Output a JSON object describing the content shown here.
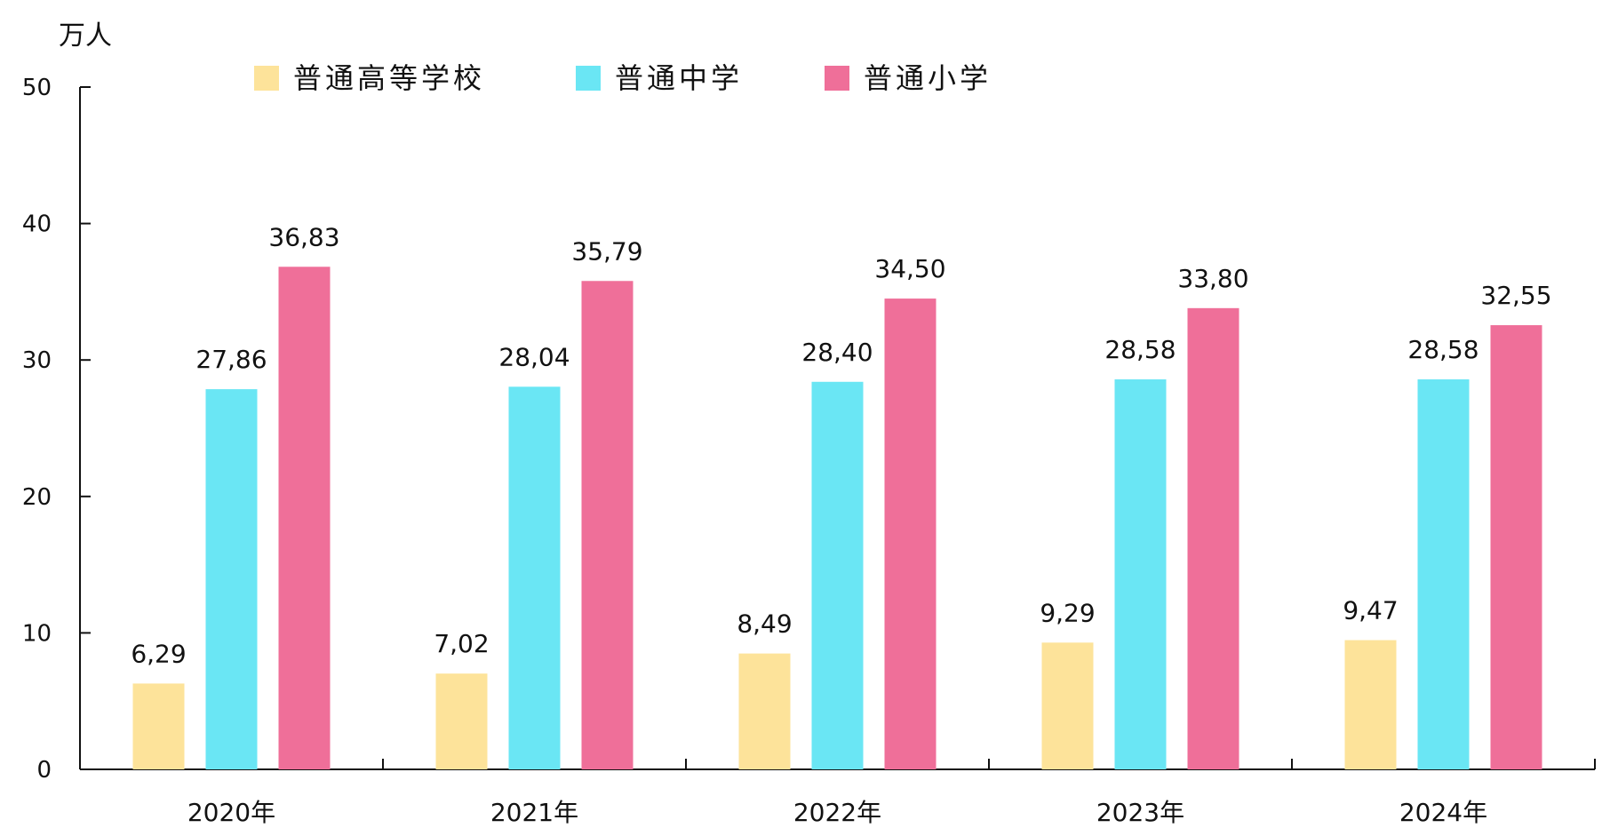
{
  "chart_data": {
    "type": "bar",
    "unit_label": "万人",
    "categories": [
      "2020年",
      "2021年",
      "2022年",
      "2023年",
      "2024年"
    ],
    "series": [
      {
        "name": "普通高等学校",
        "color": "#fde39a",
        "values": [
          6.29,
          7.02,
          8.49,
          9.29,
          9.47
        ],
        "labels": [
          "6,29",
          "7,02",
          "8,49",
          "9,29",
          "9,47"
        ]
      },
      {
        "name": "普通中学",
        "color": "#6ae6f4",
        "values": [
          27.86,
          28.04,
          28.4,
          28.58,
          28.58
        ],
        "labels": [
          "27,86",
          "28,04",
          "28,40",
          "28,58",
          "28,58"
        ]
      },
      {
        "name": "普通小学",
        "color": "#ef6f99",
        "values": [
          36.83,
          35.79,
          34.5,
          33.8,
          32.55
        ],
        "labels": [
          "36,83",
          "35,79",
          "34,50",
          "33,80",
          "32,55"
        ]
      }
    ],
    "ylim": [
      0,
      50
    ],
    "yticks": [
      0,
      10,
      20,
      30,
      40,
      50
    ],
    "legend_position": "top",
    "grid": false
  }
}
